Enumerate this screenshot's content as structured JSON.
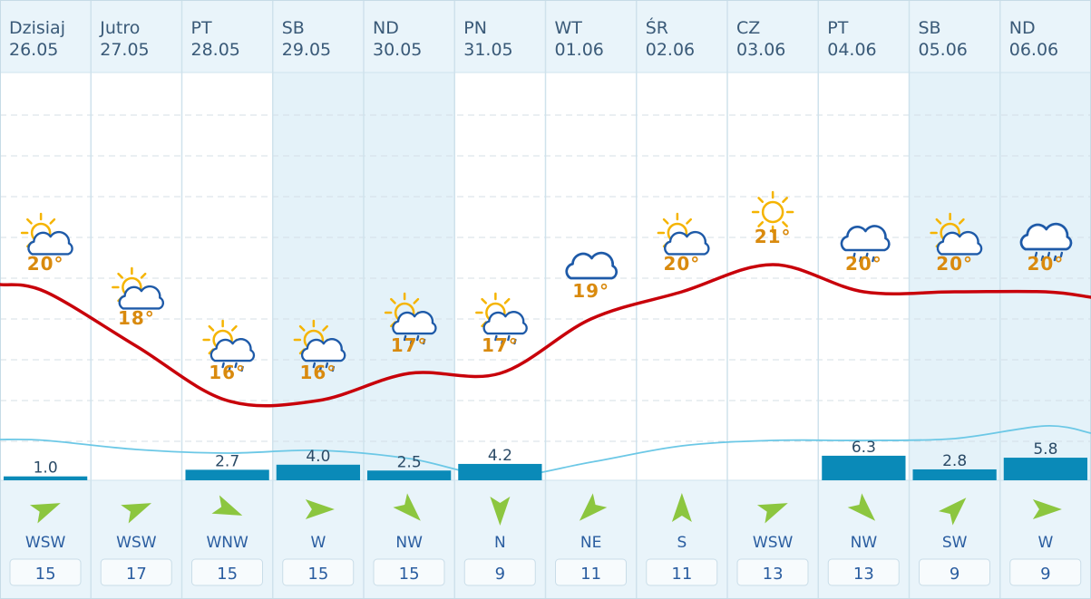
{
  "days": [
    {
      "day": "Dzisiaj",
      "date": "26.05",
      "temp": "20°",
      "icon": "sun-cloud-icon",
      "precip": "1.0",
      "wind_dir": "WSW",
      "wind_speed": "15"
    },
    {
      "day": "Jutro",
      "date": "27.05",
      "temp": "18°",
      "icon": "sun-cloud-icon",
      "precip": "",
      "wind_dir": "WSW",
      "wind_speed": "17"
    },
    {
      "day": "PT",
      "date": "28.05",
      "temp": "16°",
      "icon": "sun-cloud-rain-icon",
      "precip": "2.7",
      "wind_dir": "WNW",
      "wind_speed": "15"
    },
    {
      "day": "SB",
      "date": "29.05",
      "temp": "16°",
      "icon": "sun-cloud-rain-icon",
      "precip": "4.0",
      "wind_dir": "W",
      "wind_speed": "15"
    },
    {
      "day": "ND",
      "date": "30.05",
      "temp": "17°",
      "icon": "sun-cloud-rain-icon",
      "precip": "2.5",
      "wind_dir": "NW",
      "wind_speed": "15"
    },
    {
      "day": "PN",
      "date": "31.05",
      "temp": "17°",
      "icon": "sun-cloud-rain-icon",
      "precip": "4.2",
      "wind_dir": "N",
      "wind_speed": "9"
    },
    {
      "day": "WT",
      "date": "01.06",
      "temp": "19°",
      "icon": "cloud-icon",
      "precip": "",
      "wind_dir": "NE",
      "wind_speed": "11"
    },
    {
      "day": "ŚR",
      "date": "02.06",
      "temp": "20°",
      "icon": "sun-cloud-icon",
      "precip": "",
      "wind_dir": "S",
      "wind_speed": "11"
    },
    {
      "day": "CZ",
      "date": "03.06",
      "temp": "21°",
      "icon": "sun-icon",
      "precip": "",
      "wind_dir": "WSW",
      "wind_speed": "13"
    },
    {
      "day": "PT",
      "date": "04.06",
      "temp": "20°",
      "icon": "cloud-rain-icon",
      "precip": "6.3",
      "wind_dir": "NW",
      "wind_speed": "13"
    },
    {
      "day": "SB",
      "date": "05.06",
      "temp": "20°",
      "icon": "sun-cloud-icon",
      "precip": "2.8",
      "wind_dir": "SW",
      "wind_speed": "9"
    },
    {
      "day": "ND",
      "date": "06.06",
      "temp": "20°",
      "icon": "cloud-heavy-rain-icon",
      "precip": "5.8",
      "wind_dir": "W",
      "wind_speed": "9"
    }
  ],
  "chart_data": {
    "type": "line",
    "categories": [
      "26.05",
      "27.05",
      "28.05",
      "29.05",
      "30.05",
      "31.05",
      "01.06",
      "02.06",
      "03.06",
      "04.06",
      "05.06",
      "06.06"
    ],
    "series": [
      {
        "values": [
          20,
          18,
          16,
          16,
          17,
          17,
          19,
          20,
          21,
          20,
          20,
          20
        ]
      }
    ],
    "precipitation": [
      1.0,
      0,
      2.7,
      4.0,
      2.5,
      4.2,
      0,
      0,
      0,
      6.3,
      2.8,
      5.8
    ],
    "weekend_columns": [
      3,
      4,
      10,
      11
    ],
    "colors": {
      "header_bg": "#e9f4fa",
      "weekend_bg": "#e4f2f9",
      "temp_line": "#c8000a",
      "precip_bar": "#0a8ab8",
      "pressure_line": "#6cc8e6",
      "sun": "#f5b400",
      "cloud": "#1e5aa8",
      "arrow": "#8cc63f",
      "temp_text": "#d98a0e"
    }
  }
}
